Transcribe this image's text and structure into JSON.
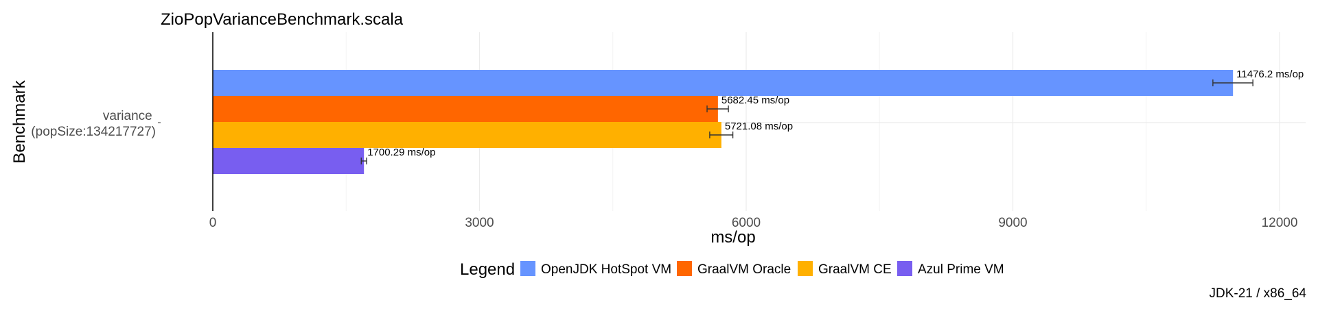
{
  "chart_data": {
    "type": "bar",
    "orientation": "horizontal",
    "title": "ZioPopVarianceBenchmark.scala",
    "xlabel": "ms/op",
    "ylabel": "Benchmark",
    "categories": [
      "variance\n(popSize:134217727)"
    ],
    "xlim": [
      0,
      12300
    ],
    "xticks": [
      0,
      3000,
      6000,
      9000,
      12000
    ],
    "grid": true,
    "legend_title": "Legend",
    "legend_position": "bottom",
    "caption": "JDK-21 / x86_64",
    "series": [
      {
        "name": "OpenJDK HotSpot VM",
        "color": "#6694FF",
        "values": [
          11476.2
        ],
        "error": [
          [
            11250,
            11700
          ]
        ],
        "label": "11476.2 ms/op"
      },
      {
        "name": "GraalVM Oracle",
        "color": "#FF6600",
        "values": [
          5682.45
        ],
        "error": [
          [
            5560,
            5800
          ]
        ],
        "label": "5682.45 ms/op"
      },
      {
        "name": "GraalVM CE",
        "color": "#FFB000",
        "values": [
          5721.08
        ],
        "error": [
          [
            5590,
            5850
          ]
        ],
        "label": "5721.08 ms/op"
      },
      {
        "name": "Azul Prime VM",
        "color": "#785EF0",
        "values": [
          1700.29
        ],
        "error": [
          [
            1670,
            1730
          ]
        ],
        "label": "1700.29 ms/op"
      }
    ]
  }
}
